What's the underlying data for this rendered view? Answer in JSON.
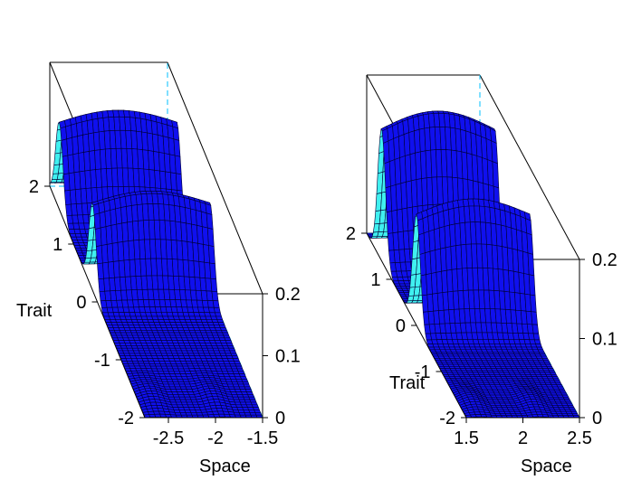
{
  "chart_data": [
    {
      "type": "surface",
      "title": "",
      "xlabel": "Space",
      "ylabel": "Trait",
      "zlabel": "",
      "xlim": [
        -2.75,
        -1.5
      ],
      "ylim": [
        -2,
        2
      ],
      "zlim": [
        0,
        0.2
      ],
      "x_ticks": [
        -2.5,
        -2,
        -1.5
      ],
      "x_tick_labels": [
        "-2.5",
        "-2",
        "-1.5"
      ],
      "y_ticks": [
        -2,
        -1,
        0,
        1,
        2
      ],
      "y_tick_labels": [
        "-2",
        "-1",
        "0",
        "1",
        "2"
      ],
      "z_ticks": [
        0,
        0.1,
        0.2
      ],
      "z_tick_labels": [
        "0",
        "0.1",
        "0.2"
      ],
      "ridges": [
        {
          "trait_center": 1.6,
          "trait_width": 0.22,
          "peak": 0.16
        },
        {
          "trait_center": 0.2,
          "trait_width": 0.22,
          "peak": 0.16
        }
      ],
      "colors": {
        "surface": "#1010ee",
        "surface_steep": "#40f0f0",
        "edge": "#000033",
        "axis": "#000000",
        "hidden_edge": "#00bfff"
      }
    },
    {
      "type": "surface",
      "title": "",
      "xlabel": "Space",
      "ylabel": "Trait",
      "zlabel": "",
      "xlim": [
        1.5,
        2.5
      ],
      "ylim": [
        -2,
        2
      ],
      "zlim": [
        0,
        0.2
      ],
      "x_ticks": [
        1.5,
        2,
        2.5
      ],
      "x_tick_labels": [
        "1.5",
        "2",
        "2.5"
      ],
      "y_ticks": [
        -2,
        -1,
        0,
        1,
        2
      ],
      "y_tick_labels": [
        "-2",
        "-1",
        "0",
        "1",
        "2"
      ],
      "z_ticks": [
        0,
        0.1,
        0.2
      ],
      "z_tick_labels": [
        "0",
        "0.1",
        "0.2"
      ],
      "ridges": [
        {
          "trait_center": 1.4,
          "trait_width": 0.22,
          "peak": 0.19
        },
        {
          "trait_center": 0.0,
          "trait_width": 0.22,
          "peak": 0.16
        }
      ],
      "colors": {
        "surface": "#1010ee",
        "surface_steep": "#40f0f0",
        "edge": "#000033",
        "axis": "#000000",
        "hidden_edge": "#00bfff"
      }
    }
  ]
}
